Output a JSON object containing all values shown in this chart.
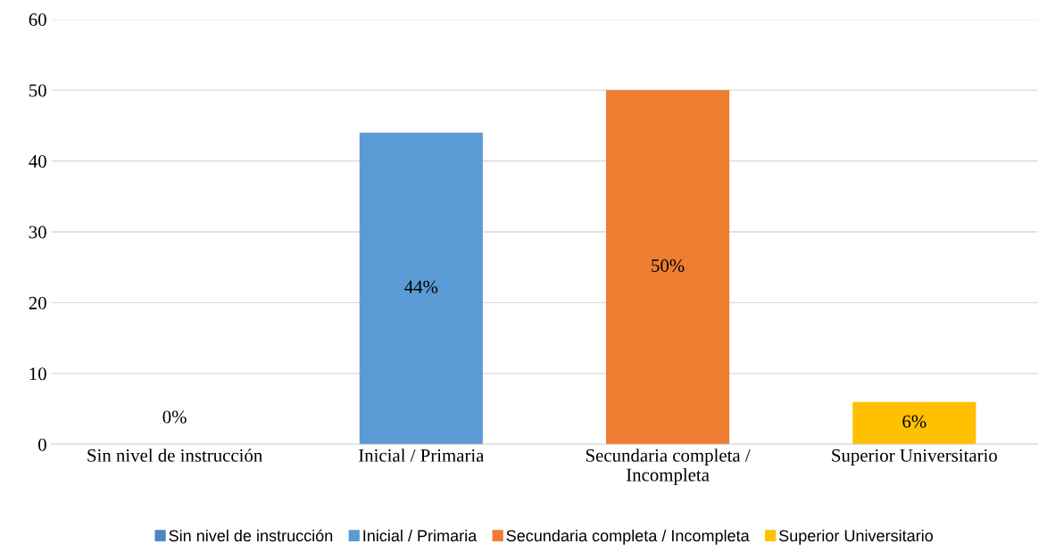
{
  "chart_data": {
    "type": "bar",
    "categories": [
      "Sin nivel de instrucción",
      "Inicial / Primaria",
      "Secundaria completa /\nIncompleta",
      "Superior Universitario"
    ],
    "series": [
      {
        "name": "Sin nivel de instrucción",
        "color": "#4a86c8",
        "values": [
          0,
          null,
          null,
          null
        ],
        "value_labels": [
          "0%",
          null,
          null,
          null
        ]
      },
      {
        "name": "Inicial / Primaria",
        "color": "#5b9bd5",
        "values": [
          null,
          44,
          null,
          null
        ],
        "value_labels": [
          null,
          "44%",
          null,
          null
        ]
      },
      {
        "name": "Secundaria completa / Incompleta",
        "color": "#ed7d31",
        "values": [
          null,
          null,
          50,
          null
        ],
        "value_labels": [
          null,
          null,
          "50%",
          null
        ]
      },
      {
        "name": "Superior Universitario",
        "color": "#ffc000",
        "values": [
          null,
          null,
          null,
          6
        ],
        "value_labels": [
          null,
          null,
          null,
          "6%"
        ]
      }
    ],
    "ylim": [
      0,
      60
    ],
    "yticks": [
      0,
      10,
      20,
      30,
      40,
      50,
      60
    ],
    "grid": "y",
    "legend": "bottom"
  }
}
